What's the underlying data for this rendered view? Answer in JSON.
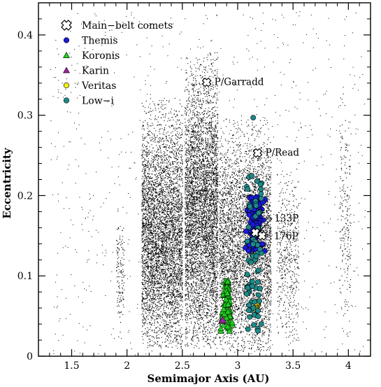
{
  "chart_data": {
    "type": "scatter",
    "title": "",
    "xlabel": "Semimajor Axis (AU)",
    "ylabel": "Eccentricity",
    "xlim": [
      1.2,
      4.2
    ],
    "ylim": [
      0.0,
      0.44
    ],
    "xticks": [
      1.5,
      2.0,
      2.5,
      3.0,
      3.5,
      4.0
    ],
    "xtick_labels": [
      "1.5",
      "2",
      "2.5",
      "3",
      "3.5",
      "4"
    ],
    "yticks": [
      0.0,
      0.1,
      0.2,
      0.3,
      0.4
    ],
    "ytick_labels": [
      "0",
      "0.1",
      "0.2",
      "0.3",
      "0.4"
    ],
    "grid": false,
    "legend_position": "top-left",
    "background_population": {
      "description_note": "dense cloud of main-belt asteroids drawn as small black dots",
      "color": "#000000",
      "regions": [
        {
          "a_range": [
            1.9,
            1.97
          ],
          "e_range": [
            0.03,
            0.17
          ]
        },
        {
          "a_range": [
            2.13,
            2.5
          ],
          "e_range": [
            0.02,
            0.28
          ]
        },
        {
          "a_range": [
            2.52,
            2.82
          ],
          "e_range": [
            0.02,
            0.33
          ]
        },
        {
          "a_range": [
            2.83,
            3.3
          ],
          "e_range": [
            0.01,
            0.26
          ]
        },
        {
          "a_range": [
            3.35,
            3.55
          ],
          "e_range": [
            0.02,
            0.22
          ]
        },
        {
          "a_range": [
            3.92,
            4.02
          ],
          "e_range": [
            0.05,
            0.3
          ]
        }
      ]
    },
    "series": [
      {
        "name": "Main-belt comets",
        "marker": "x-cross",
        "color": "#ffffff",
        "points": [
          {
            "x": 2.72,
            "y": 0.341,
            "label": "P/Garradd"
          },
          {
            "x": 3.18,
            "y": 0.253,
            "label": "P/Read"
          },
          {
            "x": 3.16,
            "y": 0.154,
            "label": "133P"
          },
          {
            "x": 3.22,
            "y": 0.15,
            "label": "176P"
          }
        ]
      },
      {
        "name": "Themis",
        "marker": "circle",
        "color": "#1a1adc",
        "cluster": {
          "a_range": [
            3.08,
            3.23
          ],
          "e_range": [
            0.13,
            0.2
          ]
        }
      },
      {
        "name": "Koronis",
        "marker": "triangle",
        "color": "#1fd01f",
        "cluster": {
          "a_range": [
            2.84,
            2.96
          ],
          "e_range": [
            0.03,
            0.095
          ]
        }
      },
      {
        "name": "Karin",
        "marker": "triangle",
        "color": "#a020a0",
        "points": [
          {
            "x": 2.865,
            "y": 0.045
          }
        ]
      },
      {
        "name": "Veritas",
        "marker": "circle",
        "color": "#f0f01e",
        "cluster": {
          "a_range": [
            3.16,
            3.19
          ],
          "e_range": [
            0.055,
            0.07
          ]
        }
      },
      {
        "name": "Low-i",
        "marker": "circle",
        "color": "#1c8a8a",
        "cluster": {
          "a_range": [
            3.08,
            3.22
          ],
          "e_range": [
            0.03,
            0.23
          ]
        },
        "points": [
          {
            "x": 3.14,
            "y": 0.297
          }
        ]
      }
    ],
    "legend": [
      {
        "label": "Main−belt comets",
        "marker": "x-cross",
        "color": "#ffffff"
      },
      {
        "label": "Themis",
        "marker": "circle",
        "color": "#1a1adc"
      },
      {
        "label": "Koronis",
        "marker": "triangle",
        "color": "#1fd01f"
      },
      {
        "label": "Karin",
        "marker": "triangle",
        "color": "#a020a0"
      },
      {
        "label": "Veritas",
        "marker": "circle",
        "color": "#f0f01e"
      },
      {
        "label": "Low−i",
        "marker": "circle",
        "color": "#1c8a8a"
      }
    ]
  }
}
